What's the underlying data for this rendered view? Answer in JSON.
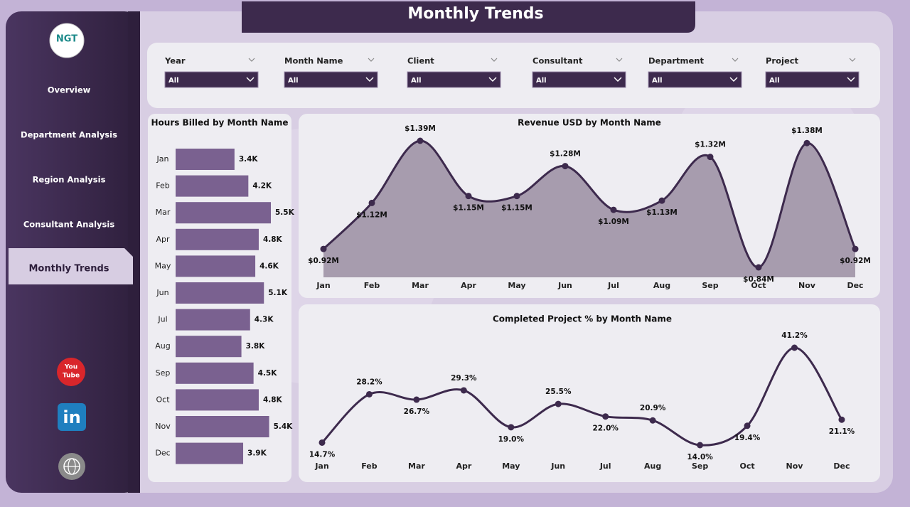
{
  "header": {
    "title": "Monthly Trends"
  },
  "logo": {
    "text": "NGT"
  },
  "nav": [
    "Overview",
    "Department Analysis",
    "Region Analysis",
    "Consultant Analysis",
    "Monthly Trends"
  ],
  "filters": [
    {
      "label": "Year",
      "value": "All"
    },
    {
      "label": "Month Name",
      "value": "All"
    },
    {
      "label": "Client",
      "value": "All"
    },
    {
      "label": "Consultant",
      "value": "All"
    },
    {
      "label": "Department",
      "value": "All"
    },
    {
      "label": "Project",
      "value": "All"
    }
  ],
  "icons": {
    "youtube": [
      "You",
      "Tube"
    ],
    "linkedin": "in"
  },
  "chart_data": [
    {
      "type": "hbar",
      "title": "Hours Billed by Month Name",
      "color": "#7a6190",
      "categories": [
        "Jan",
        "Feb",
        "Mar",
        "Apr",
        "May",
        "Jun",
        "Jul",
        "Aug",
        "Sep",
        "Oct",
        "Nov",
        "Dec"
      ],
      "values": [
        3400,
        4200,
        5500,
        4800,
        4600,
        5100,
        4300,
        3800,
        4500,
        4800,
        5400,
        3900
      ],
      "value_labels": [
        "3.4K",
        "4.2K",
        "5.5K",
        "4.8K",
        "4.6K",
        "5.1K",
        "4.3K",
        "3.8K",
        "4.5K",
        "4.8K",
        "5.4K",
        "3.9K"
      ]
    },
    {
      "type": "area",
      "title": "Revenue USD by Month Name",
      "color": "#3d2a4d",
      "categories": [
        "Jan",
        "Feb",
        "Mar",
        "Apr",
        "May",
        "Jun",
        "Jul",
        "Aug",
        "Sep",
        "Oct",
        "Nov",
        "Dec"
      ],
      "values": [
        920000,
        1120000,
        1390000,
        1150000,
        1150000,
        1280000,
        1090000,
        1130000,
        1320000,
        840000,
        1380000,
        920000
      ],
      "value_labels": [
        "$0.92M",
        "$1.12M",
        "$1.39M",
        "$1.15M",
        "$1.15M",
        "$1.28M",
        "$1.09M",
        "$1.13M",
        "$1.32M",
        "$0.84M",
        "$1.38M",
        "$0.92M"
      ]
    },
    {
      "type": "line",
      "title": "Completed Project % by Month Name",
      "color": "#3d2a4d",
      "categories": [
        "Jan",
        "Feb",
        "Mar",
        "Apr",
        "May",
        "Jun",
        "Jul",
        "Aug",
        "Sep",
        "Oct",
        "Nov",
        "Dec"
      ],
      "values": [
        14.7,
        28.2,
        26.7,
        29.3,
        19.0,
        25.5,
        22.0,
        20.9,
        14.0,
        19.4,
        41.2,
        21.1
      ],
      "value_labels": [
        "14.7%",
        "28.2%",
        "26.7%",
        "29.3%",
        "19.0%",
        "25.5%",
        "22.0%",
        "20.9%",
        "14.0%",
        "19.4%",
        "41.2%",
        "21.1%"
      ]
    }
  ]
}
